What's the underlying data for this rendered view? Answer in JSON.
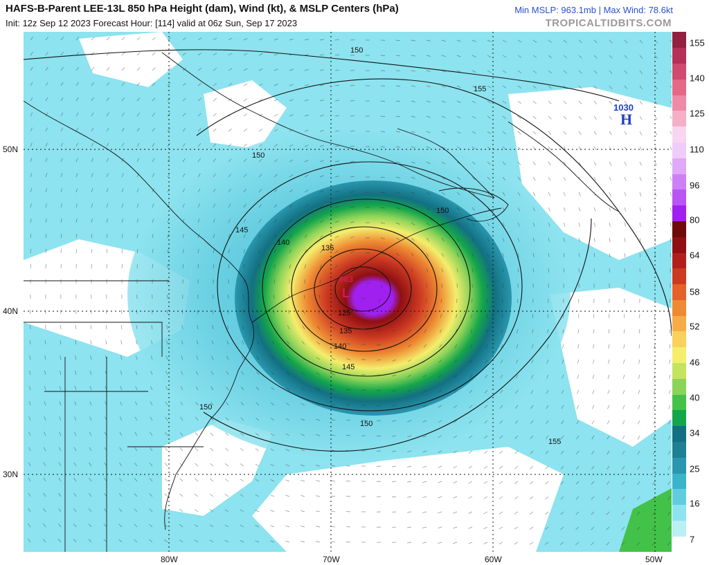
{
  "header": {
    "title": "HAFS-B-Parent LEE-13L 850 hPa Height (dam), Wind (kt), & MSLP Centers (hPa)",
    "subtitle": "Init: 12z Sep 12 2023   Forecast Hour: [114]   valid at 06z Sun, Sep 17 2023",
    "stats": "Min MSLP: 963.1mb | Max Wind: 78.6kt",
    "brand": "TROPICALTIDBITS.COM"
  },
  "map": {
    "lat_labels": [
      "50N",
      "40N",
      "30N"
    ],
    "lon_labels": [
      "80W",
      "70W",
      "60W",
      "50W"
    ],
    "contour_labels": [
      "150",
      "155",
      "150",
      "145",
      "140",
      "135",
      "125",
      "135",
      "140",
      "145",
      "150",
      "150",
      "150",
      "155"
    ],
    "low_center": {
      "symbol": "L",
      "value": "963"
    },
    "high_center": {
      "symbol": "H",
      "value": "1030"
    }
  },
  "colorbar": {
    "labels": [
      "155",
      "140",
      "125",
      "110",
      "96",
      "80",
      "64",
      "58",
      "52",
      "46",
      "40",
      "34",
      "25",
      "16",
      "7"
    ],
    "colors": [
      "#ffffff",
      "#b8f0f5",
      "#8de3ef",
      "#62ccdf",
      "#3ab4cb",
      "#2a97ae",
      "#1f7f93",
      "#137082",
      "#14a64a",
      "#43c24a",
      "#8bd359",
      "#c4e35f",
      "#f4ee6c",
      "#f9d15c",
      "#f6ad47",
      "#ee8a33",
      "#e4612a",
      "#cc3a22",
      "#b01f1c",
      "#8f0f12",
      "#6e0a0a",
      "#a020f0",
      "#b955f4",
      "#cd80f6",
      "#dfa8f8",
      "#f0ccfa",
      "#f9d6ef",
      "#f5b0c8",
      "#ef8aa6",
      "#e56887",
      "#cf4a6e",
      "#b53059",
      "#932040"
    ]
  }
}
